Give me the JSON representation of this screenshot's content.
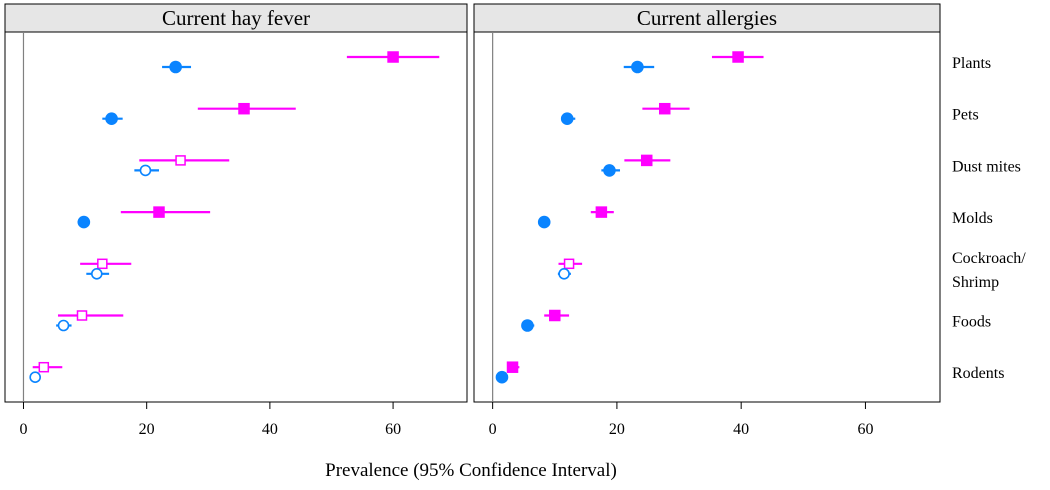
{
  "chart_data": {
    "type": "dot-interval",
    "xlabel": "Prevalence (95% Confidence Interval)",
    "xlim": [
      -3,
      72
    ],
    "xticks": [
      0,
      20,
      40,
      60
    ],
    "categories": [
      "Plants",
      "Pets",
      "Dust mites",
      "Molds",
      "Cockroach/ Shrimp",
      "Foods",
      "Rodents"
    ],
    "category_lines": [
      [
        "Plants"
      ],
      [
        "Pets"
      ],
      [
        "Dust mites"
      ],
      [
        "Molds"
      ],
      [
        "Cockroach/",
        "Shrimp"
      ],
      [
        "Foods"
      ],
      [
        "Rodents"
      ]
    ],
    "colors": {
      "series_1": "#ff00ff",
      "series_2": "#0a84ff"
    },
    "panels": [
      {
        "title": "Current hay fever",
        "series": [
          {
            "key": "series_1",
            "marker": "square",
            "points": [
              {
                "category": "Plants",
                "value": 60,
                "low": 52.5,
                "high": 67.5,
                "filled": true
              },
              {
                "category": "Pets",
                "value": 35.8,
                "low": 28.3,
                "high": 44.2,
                "filled": true
              },
              {
                "category": "Dust mites",
                "value": 25.5,
                "low": 18.8,
                "high": 33.4,
                "filled": false
              },
              {
                "category": "Molds",
                "value": 22,
                "low": 15.8,
                "high": 30.3,
                "filled": true
              },
              {
                "category": "Cockroach/ Shrimp",
                "value": 12.8,
                "low": 9.2,
                "high": 17.5,
                "filled": false
              },
              {
                "category": "Foods",
                "value": 9.5,
                "low": 5.6,
                "high": 16.2,
                "filled": false
              },
              {
                "category": "Rodents",
                "value": 3.3,
                "low": 1.5,
                "high": 6.3,
                "filled": false
              }
            ]
          },
          {
            "key": "series_2",
            "marker": "circle",
            "points": [
              {
                "category": "Plants",
                "value": 24.7,
                "low": 22.5,
                "high": 27.2,
                "filled": true
              },
              {
                "category": "Pets",
                "value": 14.3,
                "low": 12.8,
                "high": 16.1,
                "filled": true
              },
              {
                "category": "Dust mites",
                "value": 19.8,
                "low": 18,
                "high": 22,
                "filled": false
              },
              {
                "category": "Molds",
                "value": 9.8,
                "low": 8.8,
                "high": 10.8,
                "filled": true
              },
              {
                "category": "Cockroach/ Shrimp",
                "value": 11.9,
                "low": 10.2,
                "high": 13.9,
                "filled": false
              },
              {
                "category": "Foods",
                "value": 6.5,
                "low": 5.3,
                "high": 7.8,
                "filled": false
              },
              {
                "category": "Rodents",
                "value": 1.9,
                "low": 1.2,
                "high": 2.8,
                "filled": false
              }
            ]
          }
        ]
      },
      {
        "title": "Current allergies",
        "series": [
          {
            "key": "series_1",
            "marker": "square",
            "points": [
              {
                "category": "Plants",
                "value": 39.5,
                "low": 35.3,
                "high": 43.6,
                "filled": true
              },
              {
                "category": "Pets",
                "value": 27.7,
                "low": 24.1,
                "high": 31.7,
                "filled": true
              },
              {
                "category": "Dust mites",
                "value": 24.8,
                "low": 21.2,
                "high": 28.6,
                "filled": true
              },
              {
                "category": "Molds",
                "value": 17.5,
                "low": 15.8,
                "high": 19.5,
                "filled": true
              },
              {
                "category": "Cockroach/ Shrimp",
                "value": 12.3,
                "low": 10.6,
                "high": 14.4,
                "filled": false
              },
              {
                "category": "Foods",
                "value": 10,
                "low": 8.3,
                "high": 12.3,
                "filled": true
              },
              {
                "category": "Rodents",
                "value": 3.2,
                "low": 2.4,
                "high": 4.3,
                "filled": true
              }
            ]
          },
          {
            "key": "series_2",
            "marker": "circle",
            "points": [
              {
                "category": "Plants",
                "value": 23.3,
                "low": 21.1,
                "high": 26,
                "filled": true
              },
              {
                "category": "Pets",
                "value": 12,
                "low": 11,
                "high": 13.3,
                "filled": true
              },
              {
                "category": "Dust mites",
                "value": 18.8,
                "low": 17.5,
                "high": 20.5,
                "filled": true
              },
              {
                "category": "Molds",
                "value": 8.3,
                "low": 7.5,
                "high": 9.1,
                "filled": true
              },
              {
                "category": "Cockroach/ Shrimp",
                "value": 11.5,
                "low": 10.5,
                "high": 12.6,
                "filled": false
              },
              {
                "category": "Foods",
                "value": 5.6,
                "low": 4.7,
                "high": 6.7,
                "filled": true
              },
              {
                "category": "Rodents",
                "value": 1.5,
                "low": 1.1,
                "high": 2,
                "filled": true
              }
            ]
          }
        ]
      }
    ]
  }
}
